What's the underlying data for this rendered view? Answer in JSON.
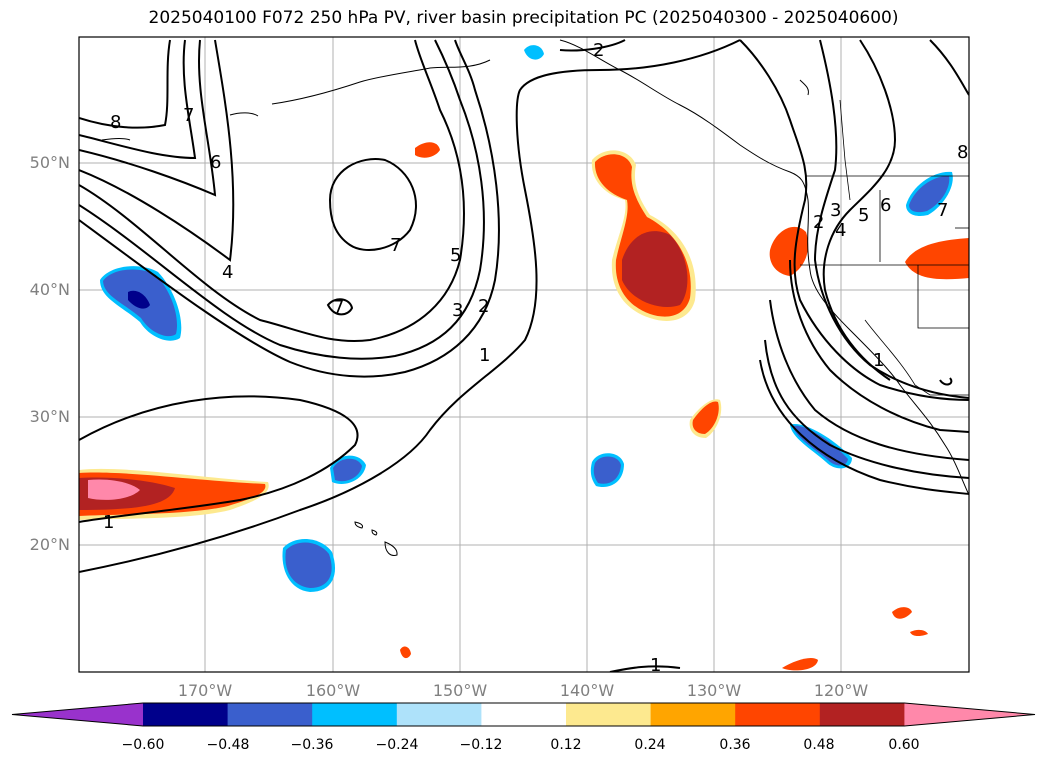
{
  "title": "2025040100 F072 250 hPa PV, river basin precipitation PC (2025040300 - 2025040600)",
  "lat_labels": [
    "50°N",
    "40°N",
    "30°N",
    "20°N"
  ],
  "lon_labels": [
    "170°W",
    "160°W",
    "150°W",
    "140°W",
    "130°W",
    "120°W"
  ],
  "contour_labels": [
    "8",
    "7",
    "6",
    "4",
    "7",
    "7",
    "5",
    "3",
    "2",
    "1",
    "2",
    "2",
    "3",
    "4",
    "5",
    "6",
    "7",
    "8",
    "1",
    "1",
    "1"
  ],
  "colorbar": {
    "ticks": [
      "−0.60",
      "−0.48",
      "−0.36",
      "−0.24",
      "−0.12",
      "0.12",
      "0.24",
      "0.36",
      "0.48",
      "0.60"
    ],
    "colors": [
      "#9932cc",
      "#00008b",
      "#3a5fcd",
      "#00bfff",
      "#aee2fa",
      "#ffffff",
      "#fde98f",
      "#ffa500",
      "#ff4500",
      "#b22222",
      "#ff88aa"
    ]
  }
}
